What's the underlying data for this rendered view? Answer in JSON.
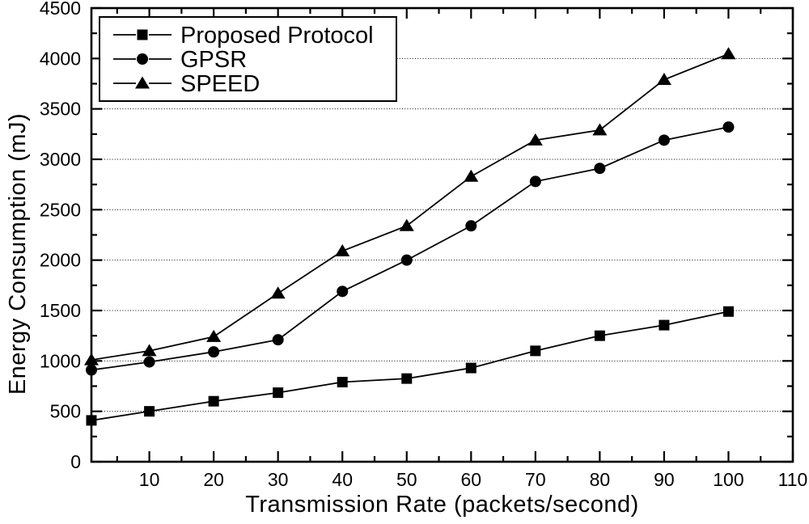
{
  "figure": {
    "background": "#ffffff",
    "foreground": "#000000"
  },
  "chart_data": {
    "type": "line",
    "title": "",
    "xlabel": "Transmission Rate (packets/second)",
    "ylabel": "Energy Consumption (mJ)",
    "xlim": [
      1,
      110
    ],
    "ylim": [
      0,
      4500
    ],
    "grid": "horizontal-dotted",
    "gridline_values": [
      500,
      1000,
      1500,
      2000,
      2500,
      3000,
      3500,
      4000
    ],
    "x_tick_labels": [
      10,
      20,
      30,
      40,
      50,
      60,
      70,
      80,
      90,
      100,
      110
    ],
    "x_minor_ticks": [
      5,
      15,
      25,
      35,
      45,
      55,
      65,
      75,
      85,
      95,
      105
    ],
    "y_tick_labels": [
      0,
      500,
      1000,
      1500,
      2000,
      2500,
      3000,
      3500,
      4000,
      4500
    ],
    "y_minor_ticks": [
      250,
      750,
      1250,
      1750,
      2250,
      2750,
      3250,
      3750,
      4250
    ],
    "legend_position": "top-left",
    "line_color": "#000000",
    "x": [
      1,
      10,
      20,
      30,
      40,
      50,
      60,
      70,
      80,
      90,
      100
    ],
    "series": [
      {
        "name": "Proposed Protocol",
        "marker": "square",
        "values": [
          410,
          500,
          600,
          685,
          790,
          825,
          930,
          1100,
          1250,
          1355,
          1490
        ]
      },
      {
        "name": "GPSR",
        "marker": "circle",
        "values": [
          910,
          990,
          1090,
          1210,
          1690,
          2000,
          2340,
          2780,
          2910,
          3190,
          3320
        ]
      },
      {
        "name": "SPEED",
        "marker": "triangle",
        "values": [
          1010,
          1100,
          1240,
          1670,
          2090,
          2340,
          2830,
          3190,
          3290,
          3790,
          4045
        ]
      }
    ]
  }
}
